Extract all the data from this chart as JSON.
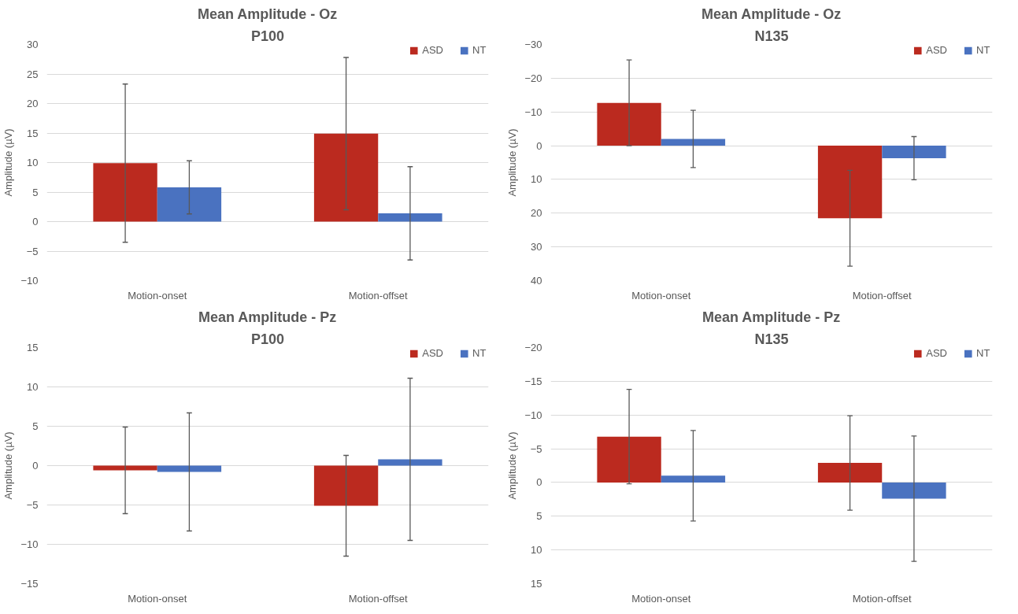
{
  "chart_data": [
    {
      "type": "bar",
      "title": "Mean Amplitude - Oz",
      "subtitle": "P100",
      "ylabel": "Amplitude (µV)",
      "categories": [
        "Motion-onset",
        "Motion-offset"
      ],
      "series": [
        {
          "name": "ASD",
          "color": "#bb2a1f",
          "values": [
            9.9,
            14.9
          ],
          "errors": [
            13.4,
            12.9
          ]
        },
        {
          "name": "NT",
          "color": "#4a72c0",
          "values": [
            5.8,
            1.4
          ],
          "errors": [
            4.5,
            7.9
          ]
        }
      ],
      "ylim": [
        -10,
        30
      ],
      "yticks": [
        -10,
        -5,
        0,
        5,
        10,
        15,
        20,
        25,
        30
      ],
      "grid": "y",
      "legend": "top right"
    },
    {
      "type": "bar",
      "title": "Mean Amplitude - Oz",
      "subtitle": "N135",
      "ylabel": "Amplitude (µV)",
      "categories": [
        "Motion-onset",
        "Motion-offset"
      ],
      "series": [
        {
          "name": "ASD",
          "color": "#bb2a1f",
          "values": [
            -12.7,
            21.5
          ],
          "errors": [
            12.7,
            14.2
          ]
        },
        {
          "name": "NT",
          "color": "#4a72c0",
          "values": [
            -2.0,
            3.7
          ],
          "errors": [
            8.5,
            6.4
          ]
        }
      ],
      "ylim": [
        40,
        -30
      ],
      "yticks": [
        -30,
        -20,
        -10,
        0,
        10,
        20,
        30,
        40
      ],
      "grid": "y",
      "legend": "top right"
    },
    {
      "type": "bar",
      "title": "Mean Amplitude - Pz",
      "subtitle": "P100",
      "ylabel": "Amplitude (µV)",
      "categories": [
        "Motion-onset",
        "Motion-offset"
      ],
      "series": [
        {
          "name": "ASD",
          "color": "#bb2a1f",
          "values": [
            -0.6,
            -5.1
          ],
          "errors": [
            5.5,
            6.4
          ]
        },
        {
          "name": "NT",
          "color": "#4a72c0",
          "values": [
            -0.8,
            0.8
          ],
          "errors": [
            7.5,
            10.3
          ]
        }
      ],
      "ylim": [
        -15,
        15
      ],
      "yticks": [
        -15,
        -10,
        -5,
        0,
        5,
        10,
        15
      ],
      "grid": "y",
      "legend": "top right"
    },
    {
      "type": "bar",
      "title": "Mean Amplitude - Pz",
      "subtitle": "N135",
      "ylabel": "Amplitude (µV)",
      "categories": [
        "Motion-onset",
        "Motion-offset"
      ],
      "series": [
        {
          "name": "ASD",
          "color": "#bb2a1f",
          "values": [
            -6.8,
            -2.9
          ],
          "errors": [
            7.0,
            7.0
          ]
        },
        {
          "name": "NT",
          "color": "#4a72c0",
          "values": [
            -1.0,
            2.4
          ],
          "errors": [
            6.7,
            9.3
          ]
        }
      ],
      "ylim": [
        15,
        -20
      ],
      "yticks": [
        -20,
        -15,
        -10,
        -5,
        0,
        5,
        10,
        15
      ],
      "grid": "y",
      "legend": "top right"
    }
  ]
}
